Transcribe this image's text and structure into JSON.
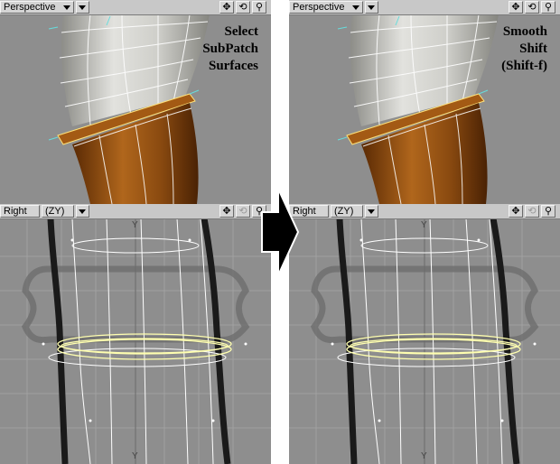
{
  "left_panel": {
    "perspective_view": {
      "view_label": "Perspective",
      "caption_lines": [
        "Select",
        "SubPatch",
        "Surfaces"
      ]
    },
    "right_view": {
      "view_label": "Right",
      "axis_mode": "(ZY)",
      "axis_marker": "Y"
    }
  },
  "right_panel": {
    "perspective_view": {
      "view_label": "Perspective",
      "caption_lines": [
        "Smooth",
        "Shift",
        "(Shift-f)"
      ]
    },
    "right_view": {
      "view_label": "Right",
      "axis_mode": "(ZY)",
      "axis_marker": "Y"
    }
  },
  "icons": {
    "move": "move-icon",
    "rotate": "rotate-icon",
    "zoom": "zoom-icon",
    "dropdown": "chevron-down-icon",
    "step_arrow": "right-arrow-icon"
  },
  "colors": {
    "viewport_bg": "#8e8e8e",
    "grey_surface": "#c7c7c2",
    "brown_surface": "#8a4a10",
    "selected_wire": "#ffffb0",
    "wire": "#ffffff"
  }
}
